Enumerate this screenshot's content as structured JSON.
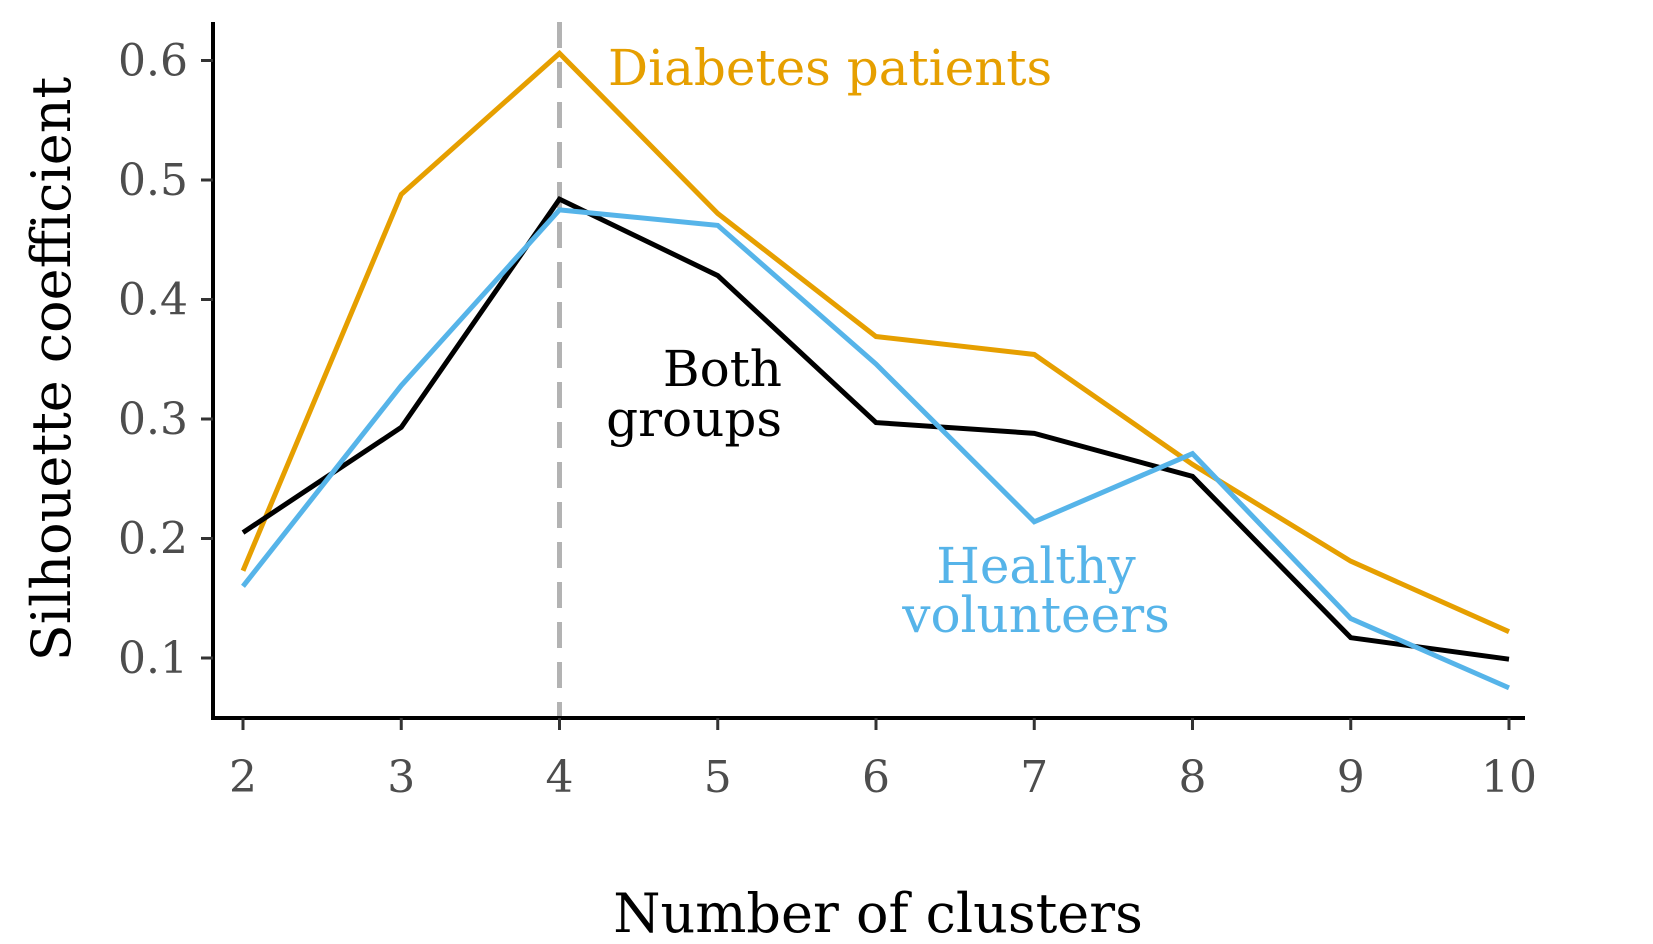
{
  "chart_data": {
    "type": "line",
    "title": "",
    "xlabel": "Number of clusters",
    "ylabel": "Silhouette coefficient",
    "x": [
      2,
      3,
      4,
      5,
      6,
      7,
      8,
      9,
      10
    ],
    "xlim": [
      1.8,
      10.2
    ],
    "ylim": [
      0.05,
      0.63
    ],
    "xticks": [
      "2",
      "3",
      "4",
      "5",
      "6",
      "7",
      "8",
      "9",
      "10"
    ],
    "yticks": [
      "0.1",
      "0.2",
      "0.3",
      "0.4",
      "0.5",
      "0.6"
    ],
    "reference_line": {
      "x": 4,
      "style": "dashed",
      "color": "#b3b3b3"
    },
    "grid": false,
    "legend": "none",
    "series": [
      {
        "name": "Diabetes patients",
        "color": "#E69F00",
        "values": [
          0.173,
          0.488,
          0.606,
          0.472,
          0.369,
          0.354,
          0.262,
          0.181,
          0.122
        ]
      },
      {
        "name": "Both groups",
        "color": "#000000",
        "values": [
          0.205,
          0.293,
          0.484,
          0.42,
          0.297,
          0.288,
          0.252,
          0.117,
          0.099
        ]
      },
      {
        "name": "Healthy volunteers",
        "color": "#56B4E9",
        "values": [
          0.16,
          0.328,
          0.475,
          0.462,
          0.346,
          0.214,
          0.271,
          0.133,
          0.075
        ]
      }
    ],
    "annotations": {
      "diabetes": "Diabetes patients",
      "both_line1": "Both",
      "both_line2": "groups",
      "healthy_line1": "Healthy",
      "healthy_line2": "volunteers"
    }
  }
}
